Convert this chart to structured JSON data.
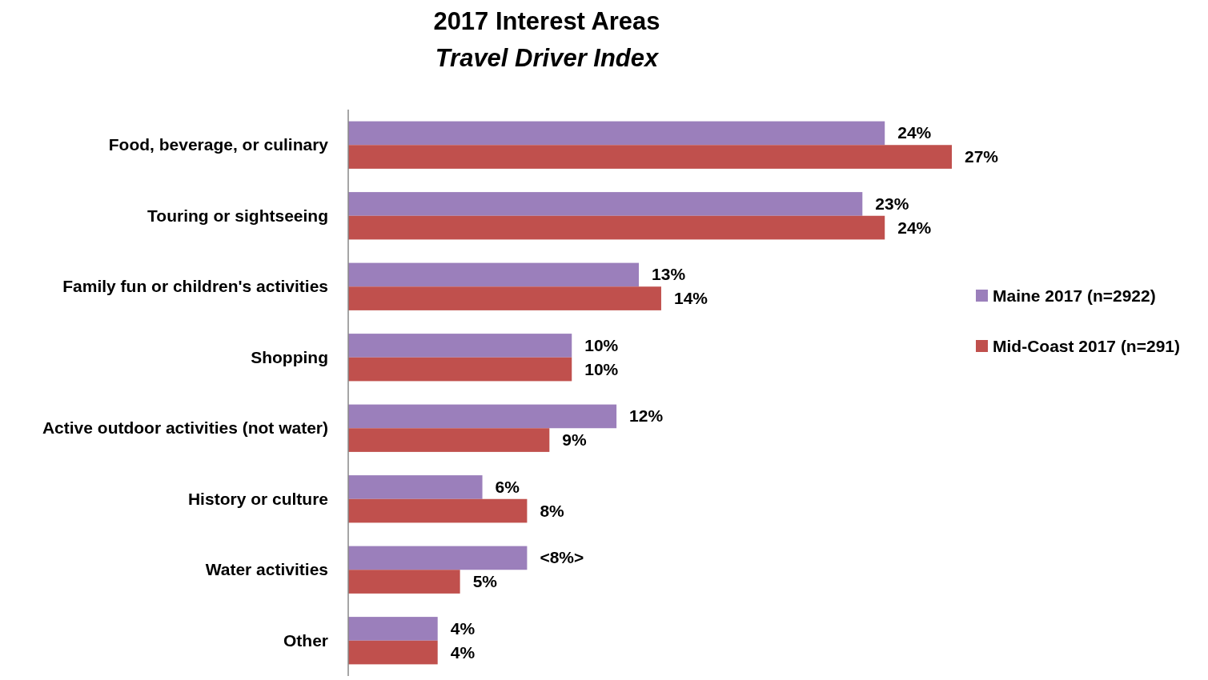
{
  "chart_data": {
    "type": "bar",
    "orientation": "horizontal",
    "title": "2017 Interest Areas",
    "subtitle": "Travel Driver Index",
    "categories": [
      "Food, beverage, or culinary",
      "Touring or sightseeing",
      "Family fun or children's activities",
      "Shopping",
      "Active outdoor activities (not water)",
      "History or culture",
      "Water activities",
      "Other"
    ],
    "series": [
      {
        "name": "Maine 2017 (n=2922)",
        "color": "#9b7fbb",
        "values": [
          24,
          23,
          13,
          10,
          12,
          6,
          8,
          4
        ],
        "value_labels": [
          "24%",
          "23%",
          "13%",
          "10%",
          "12%",
          "6%",
          "<8%>",
          "4%"
        ]
      },
      {
        "name": "Mid-Coast 2017 (n=291)",
        "color": "#c0504d",
        "values": [
          27,
          24,
          14,
          10,
          9,
          8,
          5,
          4
        ],
        "value_labels": [
          "27%",
          "24%",
          "14%",
          "10%",
          "9%",
          "8%",
          "5%",
          "4%"
        ]
      }
    ],
    "legend": "right"
  }
}
